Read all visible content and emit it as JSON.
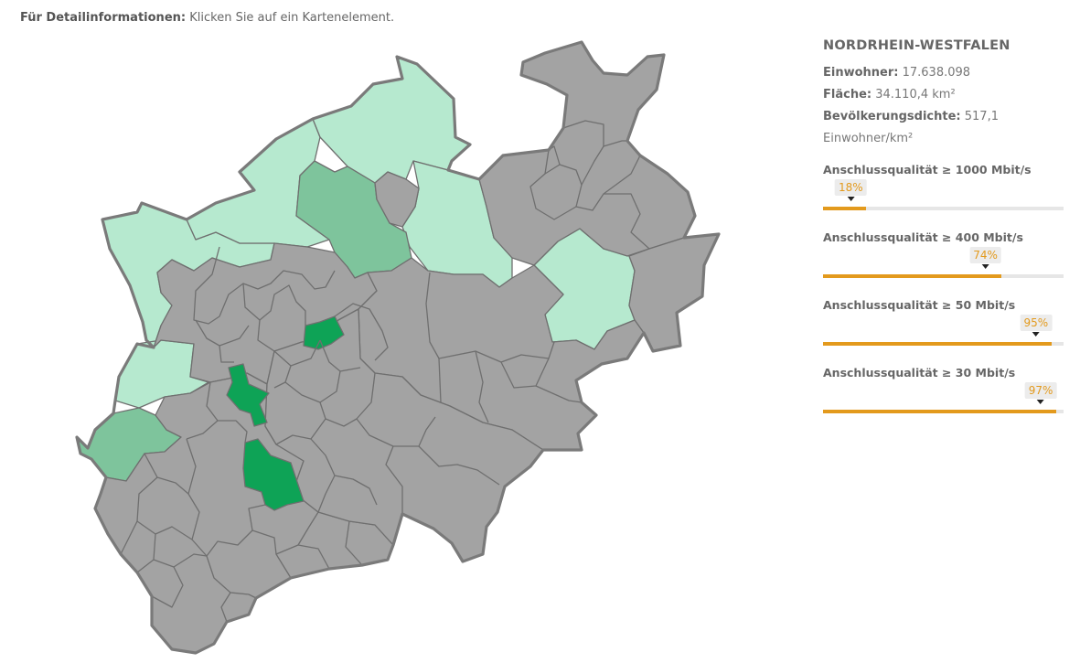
{
  "hint": {
    "label": "Für Detailinformationen:",
    "text": "Klicken Sie auf ein Kartenelement."
  },
  "state": {
    "name": "NORDRHEIN-WESTFALEN",
    "population_label": "Einwohner:",
    "population": "17.638.098",
    "area_label": "Fläche:",
    "area": "34.110,4 km²",
    "density_label": "Bevölkerungsdichte:",
    "density": "517,1 Einwohner/km²"
  },
  "bars": [
    {
      "title": "Anschlussqualität ≥ 1000 Mbit/s",
      "value": 18,
      "label": "18%"
    },
    {
      "title": "Anschlussqualität ≥ 400 Mbit/s",
      "value": 74,
      "label": "74%"
    },
    {
      "title": "Anschlussqualität ≥ 50 Mbit/s",
      "value": 95,
      "label": "95%"
    },
    {
      "title": "Anschlussqualität ≥ 30 Mbit/s",
      "value": 97,
      "label": "97%"
    }
  ],
  "colors": {
    "gray": "#a3a3a3",
    "light_green": "#b6e9cf",
    "mid_green": "#7ec49c",
    "dark_green": "#0ea356",
    "accent": "#e39a1d"
  }
}
